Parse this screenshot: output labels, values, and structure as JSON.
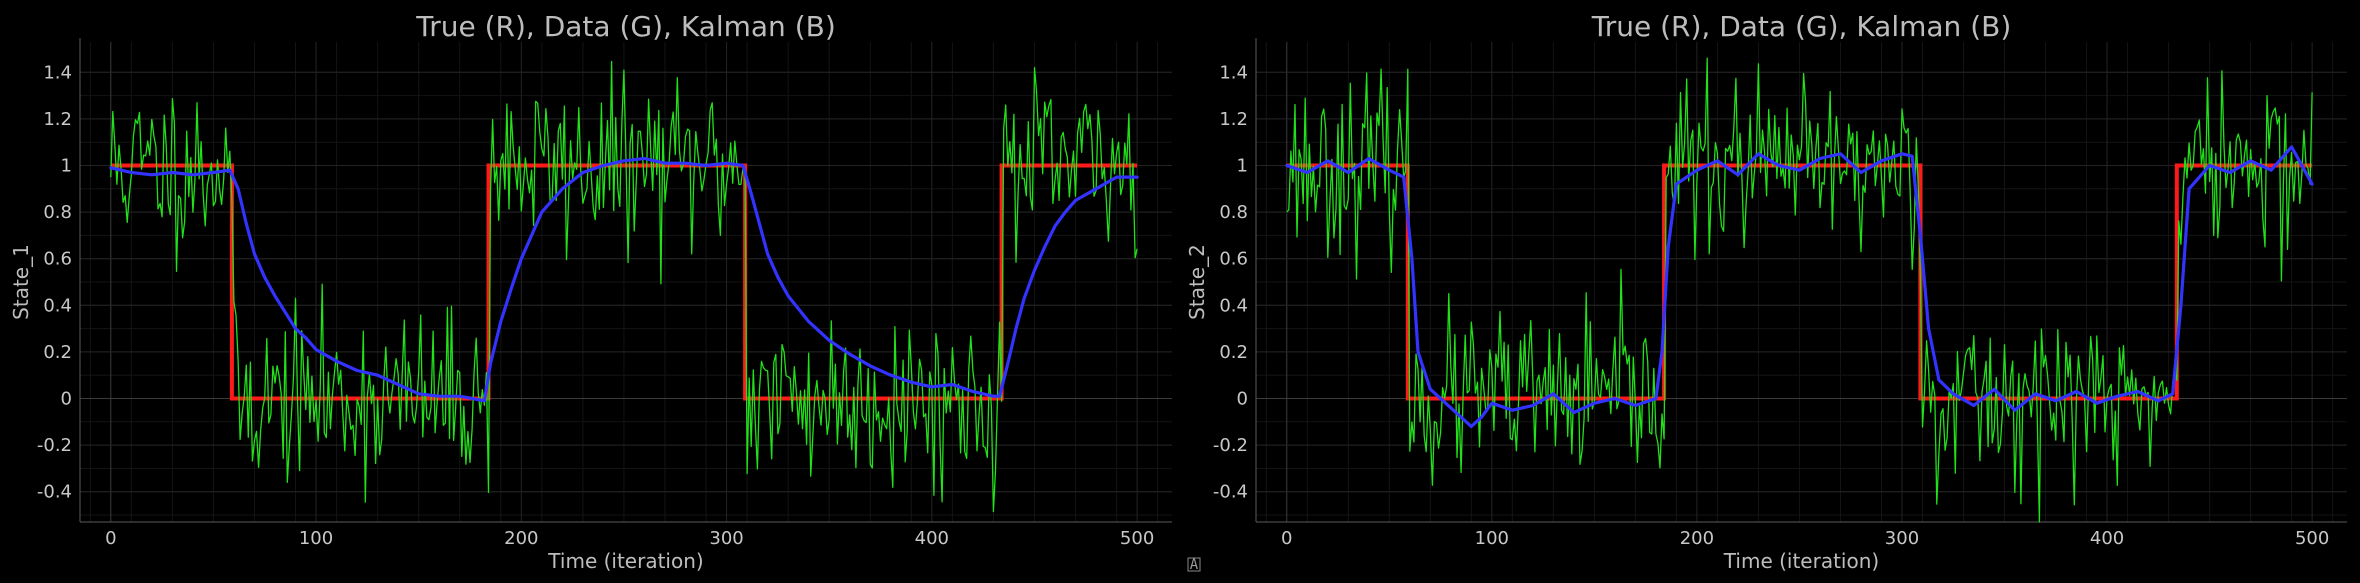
{
  "figure": {
    "corner_glyph": "A"
  },
  "chart_data": [
    {
      "type": "line",
      "title": "True (R), Data (G), Kalman (B)",
      "xlabel": "Time (iteration)",
      "ylabel": "State_1",
      "xlim": [
        -15,
        517
      ],
      "ylim": [
        -0.53,
        1.53
      ],
      "xticks": [
        0,
        100,
        200,
        300,
        400,
        500
      ],
      "yticks": [
        -0.4,
        -0.2,
        0,
        0.2,
        0.4,
        0.6,
        0.8,
        1,
        1.2,
        1.4
      ],
      "grid": true,
      "colors": {
        "true": "#ff1a1a",
        "data": "#22e01a",
        "kalman": "#3333ff"
      },
      "true_segments": [
        {
          "x": [
            0,
            59
          ],
          "y": 1
        },
        {
          "x": [
            59,
            184
          ],
          "y": 0
        },
        {
          "x": [
            184,
            309
          ],
          "y": 1
        },
        {
          "x": [
            309,
            434
          ],
          "y": 0
        },
        {
          "x": [
            434,
            500
          ],
          "y": 1
        }
      ],
      "data_noise": {
        "sigma": 0.18,
        "seed": 11
      },
      "kalman": {
        "x": [
          0,
          10,
          20,
          30,
          40,
          50,
          58,
          62,
          66,
          70,
          75,
          80,
          85,
          90,
          95,
          100,
          110,
          120,
          130,
          140,
          150,
          160,
          170,
          182,
          185,
          190,
          195,
          200,
          205,
          210,
          220,
          230,
          240,
          250,
          260,
          270,
          280,
          290,
          300,
          308,
          312,
          316,
          320,
          325,
          330,
          340,
          350,
          360,
          370,
          380,
          390,
          400,
          410,
          420,
          430,
          433,
          437,
          441,
          445,
          450,
          455,
          460,
          465,
          470,
          480,
          490,
          500
        ],
        "y": [
          0.99,
          0.97,
          0.96,
          0.97,
          0.96,
          0.97,
          0.98,
          0.9,
          0.75,
          0.62,
          0.52,
          0.44,
          0.37,
          0.3,
          0.26,
          0.21,
          0.16,
          0.12,
          0.1,
          0.06,
          0.02,
          0.01,
          0.01,
          -0.01,
          0.15,
          0.33,
          0.47,
          0.6,
          0.7,
          0.8,
          0.9,
          0.97,
          1.0,
          1.02,
          1.03,
          1.01,
          1.01,
          1.0,
          1.01,
          1.0,
          0.88,
          0.75,
          0.62,
          0.52,
          0.44,
          0.33,
          0.25,
          0.19,
          0.14,
          0.1,
          0.07,
          0.05,
          0.06,
          0.03,
          0.01,
          0.01,
          0.15,
          0.3,
          0.43,
          0.55,
          0.65,
          0.74,
          0.8,
          0.85,
          0.9,
          0.95,
          0.95
        ]
      }
    },
    {
      "type": "line",
      "title": "True (R), Data (G), Kalman (B)",
      "xlabel": "Time (iteration)",
      "ylabel": "State_2",
      "xlim": [
        -15,
        517
      ],
      "ylim": [
        -0.53,
        1.53
      ],
      "xticks": [
        0,
        100,
        200,
        300,
        400,
        500
      ],
      "yticks": [
        -0.4,
        -0.2,
        0,
        0.2,
        0.4,
        0.6,
        0.8,
        1,
        1.2,
        1.4
      ],
      "grid": true,
      "colors": {
        "true": "#ff1a1a",
        "data": "#22e01a",
        "kalman": "#3333ff"
      },
      "true_segments": [
        {
          "x": [
            0,
            59
          ],
          "y": 1
        },
        {
          "x": [
            59,
            184
          ],
          "y": 0
        },
        {
          "x": [
            184,
            309
          ],
          "y": 1
        },
        {
          "x": [
            309,
            434
          ],
          "y": 0
        },
        {
          "x": [
            434,
            500
          ],
          "y": 1
        }
      ],
      "data_noise": {
        "sigma": 0.18,
        "seed": 23
      },
      "kalman": {
        "x": [
          0,
          10,
          20,
          30,
          40,
          50,
          57,
          61,
          64,
          70,
          80,
          90,
          95,
          100,
          110,
          120,
          130,
          140,
          150,
          160,
          170,
          180,
          183,
          186,
          190,
          200,
          210,
          220,
          230,
          240,
          250,
          260,
          270,
          280,
          290,
          300,
          305,
          309,
          313,
          318,
          325,
          335,
          345,
          355,
          365,
          375,
          385,
          395,
          405,
          415,
          425,
          432,
          436,
          440,
          450,
          460,
          470,
          480,
          490,
          495,
          500
        ],
        "y": [
          1.0,
          0.97,
          1.02,
          0.97,
          1.03,
          0.98,
          0.95,
          0.6,
          0.2,
          0.04,
          -0.04,
          -0.12,
          -0.08,
          -0.02,
          -0.05,
          -0.03,
          0.02,
          -0.06,
          -0.02,
          0.0,
          -0.03,
          0.0,
          0.2,
          0.65,
          0.92,
          0.98,
          1.02,
          0.96,
          1.05,
          1.0,
          0.98,
          1.03,
          1.05,
          0.97,
          1.02,
          1.05,
          1.04,
          0.7,
          0.3,
          0.08,
          0.02,
          -0.03,
          0.04,
          -0.05,
          0.02,
          -0.01,
          0.03,
          -0.02,
          0.01,
          0.03,
          -0.01,
          0.02,
          0.4,
          0.9,
          1.0,
          0.97,
          1.02,
          0.98,
          1.08,
          1.0,
          0.92
        ]
      }
    }
  ]
}
